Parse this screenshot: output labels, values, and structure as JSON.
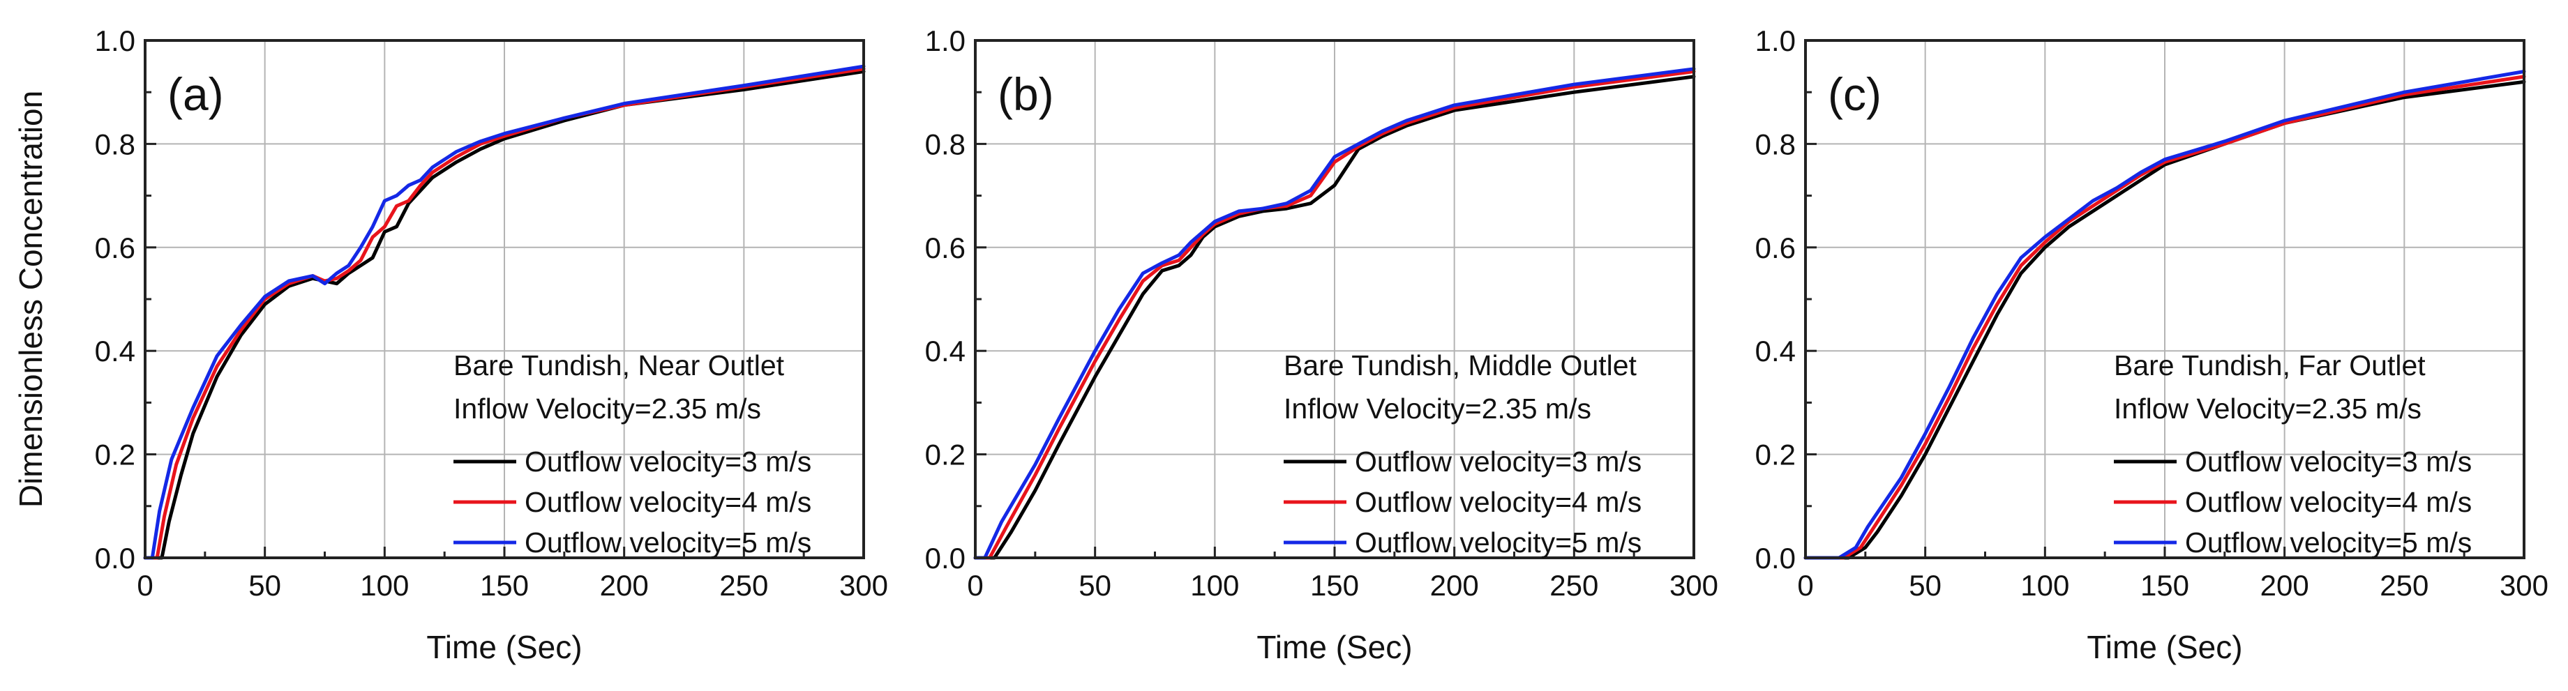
{
  "chart_data": [
    {
      "type": "line",
      "panel_label": "(a)",
      "xlabel": "Time (Sec)",
      "ylabel": "Dimensionless Concentration",
      "xlim": [
        0,
        300
      ],
      "ylim": [
        0,
        1.0
      ],
      "xticks": [
        "0",
        "50",
        "100",
        "150",
        "200",
        "250",
        "300"
      ],
      "yticks": [
        "0.0",
        "0.2",
        "0.4",
        "0.6",
        "0.8",
        "1.0"
      ],
      "grid": true,
      "legend_position": "bottom-right",
      "annotation": [
        "Bare Tundish, Near Outlet",
        "Inflow Velocity=2.35 m/s"
      ],
      "series": [
        {
          "name": "Outflow velocity=3 m/s",
          "color": "#000000",
          "x": [
            0,
            7,
            10,
            15,
            20,
            30,
            40,
            50,
            60,
            70,
            75,
            80,
            85,
            90,
            95,
            100,
            105,
            110,
            115,
            120,
            130,
            140,
            150,
            175,
            200,
            250,
            300
          ],
          "y": [
            0,
            0,
            0.07,
            0.16,
            0.24,
            0.35,
            0.43,
            0.49,
            0.525,
            0.54,
            0.535,
            0.53,
            0.55,
            0.565,
            0.58,
            0.63,
            0.64,
            0.685,
            0.71,
            0.735,
            0.765,
            0.79,
            0.81,
            0.845,
            0.875,
            0.905,
            0.94
          ]
        },
        {
          "name": "Outflow velocity=4 m/s",
          "color": "#e8141c",
          "x": [
            0,
            5,
            8,
            13,
            20,
            30,
            40,
            50,
            60,
            70,
            75,
            80,
            85,
            90,
            95,
            100,
            105,
            110,
            115,
            120,
            130,
            140,
            150,
            175,
            200,
            250,
            300
          ],
          "y": [
            0,
            0,
            0.08,
            0.18,
            0.27,
            0.37,
            0.44,
            0.5,
            0.53,
            0.545,
            0.535,
            0.54,
            0.555,
            0.575,
            0.62,
            0.64,
            0.68,
            0.69,
            0.72,
            0.745,
            0.775,
            0.8,
            0.815,
            0.85,
            0.875,
            0.91,
            0.945
          ]
        },
        {
          "name": "Outflow velocity=5 m/s",
          "color": "#1428e6",
          "x": [
            0,
            3,
            6,
            11,
            20,
            30,
            40,
            50,
            60,
            70,
            75,
            80,
            85,
            90,
            95,
            100,
            105,
            110,
            115,
            120,
            130,
            140,
            150,
            175,
            200,
            250,
            300
          ],
          "y": [
            0,
            0,
            0.09,
            0.19,
            0.29,
            0.39,
            0.45,
            0.505,
            0.535,
            0.545,
            0.53,
            0.55,
            0.565,
            0.6,
            0.64,
            0.69,
            0.7,
            0.72,
            0.73,
            0.755,
            0.785,
            0.805,
            0.82,
            0.85,
            0.878,
            0.913,
            0.95
          ]
        }
      ]
    },
    {
      "type": "line",
      "panel_label": "(b)",
      "xlabel": "Time (Sec)",
      "ylabel": "",
      "xlim": [
        0,
        300
      ],
      "ylim": [
        0,
        1.0
      ],
      "xticks": [
        "0",
        "50",
        "100",
        "150",
        "200",
        "250",
        "300"
      ],
      "yticks": [
        "0.0",
        "0.2",
        "0.4",
        "0.6",
        "0.8",
        "1.0"
      ],
      "grid": true,
      "legend_position": "bottom-right",
      "annotation": [
        "Bare Tundish, Middle Outlet",
        "Inflow Velocity=2.35 m/s"
      ],
      "series": [
        {
          "name": "Outflow velocity=3 m/s",
          "color": "#000000",
          "x": [
            0,
            8,
            15,
            25,
            35,
            50,
            60,
            70,
            78,
            85,
            90,
            95,
            100,
            110,
            120,
            130,
            140,
            150,
            160,
            170,
            180,
            200,
            250,
            300
          ],
          "y": [
            0,
            0,
            0.05,
            0.13,
            0.22,
            0.35,
            0.43,
            0.51,
            0.555,
            0.565,
            0.585,
            0.62,
            0.64,
            0.66,
            0.67,
            0.675,
            0.685,
            0.72,
            0.79,
            0.815,
            0.835,
            0.865,
            0.9,
            0.93
          ]
        },
        {
          "name": "Outflow velocity=4 m/s",
          "color": "#e8141c",
          "x": [
            0,
            6,
            13,
            25,
            35,
            50,
            60,
            70,
            78,
            85,
            90,
            95,
            100,
            110,
            120,
            130,
            140,
            150,
            160,
            170,
            180,
            200,
            250,
            300
          ],
          "y": [
            0,
            0,
            0.06,
            0.16,
            0.25,
            0.38,
            0.46,
            0.535,
            0.565,
            0.575,
            0.6,
            0.625,
            0.645,
            0.665,
            0.675,
            0.68,
            0.7,
            0.765,
            0.795,
            0.82,
            0.84,
            0.87,
            0.91,
            0.94
          ]
        },
        {
          "name": "Outflow velocity=5 m/s",
          "color": "#1428e6",
          "x": [
            0,
            4,
            11,
            25,
            35,
            50,
            60,
            70,
            78,
            85,
            90,
            95,
            100,
            110,
            120,
            130,
            140,
            150,
            160,
            170,
            180,
            200,
            250,
            300
          ],
          "y": [
            0,
            0,
            0.07,
            0.18,
            0.27,
            0.4,
            0.48,
            0.55,
            0.57,
            0.585,
            0.61,
            0.63,
            0.65,
            0.67,
            0.675,
            0.685,
            0.71,
            0.775,
            0.8,
            0.825,
            0.845,
            0.875,
            0.915,
            0.945
          ]
        }
      ]
    },
    {
      "type": "line",
      "panel_label": "(c)",
      "xlabel": "Time (Sec)",
      "ylabel": "",
      "xlim": [
        0,
        300
      ],
      "ylim": [
        0,
        1.0
      ],
      "xticks": [
        "0",
        "50",
        "100",
        "150",
        "200",
        "250",
        "300"
      ],
      "yticks": [
        "0.0",
        "0.2",
        "0.4",
        "0.6",
        "0.8",
        "1.0"
      ],
      "grid": true,
      "legend_position": "bottom-right",
      "annotation": [
        "Bare Tundish, Far Outlet",
        "Inflow Velocity=2.35 m/s"
      ],
      "series": [
        {
          "name": "Outflow velocity=3 m/s",
          "color": "#000000",
          "x": [
            0,
            18,
            25,
            30,
            40,
            50,
            60,
            70,
            80,
            90,
            100,
            110,
            120,
            130,
            140,
            150,
            175,
            200,
            250,
            300
          ],
          "y": [
            0,
            0,
            0.02,
            0.05,
            0.12,
            0.2,
            0.29,
            0.38,
            0.47,
            0.55,
            0.6,
            0.64,
            0.67,
            0.7,
            0.73,
            0.76,
            0.8,
            0.84,
            0.89,
            0.92
          ]
        },
        {
          "name": "Outflow velocity=4 m/s",
          "color": "#e8141c",
          "x": [
            0,
            16,
            23,
            28,
            40,
            50,
            60,
            70,
            80,
            90,
            100,
            110,
            120,
            130,
            140,
            150,
            175,
            200,
            250,
            300
          ],
          "y": [
            0,
            0,
            0.02,
            0.055,
            0.14,
            0.22,
            0.31,
            0.405,
            0.49,
            0.565,
            0.61,
            0.65,
            0.68,
            0.71,
            0.74,
            0.765,
            0.8,
            0.84,
            0.895,
            0.93
          ]
        },
        {
          "name": "Outflow velocity=5 m/s",
          "color": "#1428e6",
          "x": [
            0,
            14,
            21,
            26,
            40,
            50,
            60,
            70,
            80,
            90,
            100,
            110,
            120,
            130,
            140,
            150,
            175,
            200,
            250,
            300
          ],
          "y": [
            0,
            0,
            0.02,
            0.06,
            0.155,
            0.24,
            0.33,
            0.425,
            0.51,
            0.58,
            0.62,
            0.655,
            0.69,
            0.715,
            0.745,
            0.77,
            0.805,
            0.845,
            0.9,
            0.94
          ]
        }
      ]
    }
  ]
}
